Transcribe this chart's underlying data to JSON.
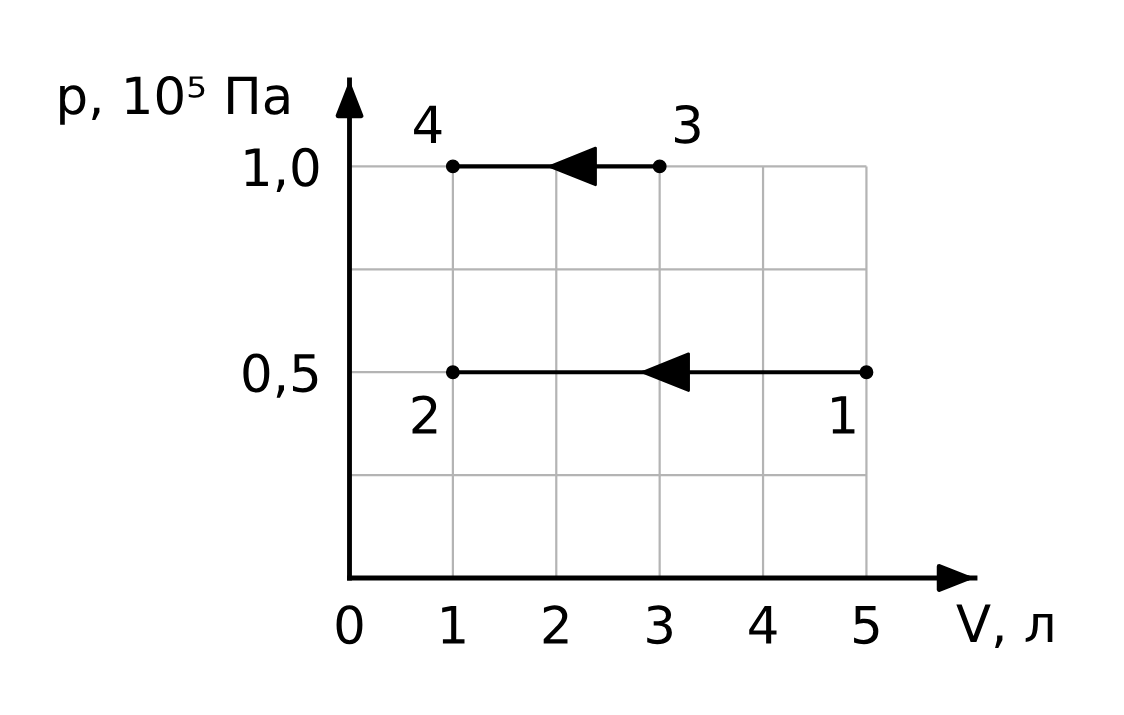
{
  "chart_data": {
    "type": "line",
    "xlabel": "V, л",
    "ylabel": "р, 10⁵ Па",
    "xlim": [
      0,
      6.05
    ],
    "ylim": [
      0,
      1.21
    ],
    "xticks": [
      0,
      1,
      2,
      3,
      4,
      5
    ],
    "yticks": [
      {
        "value": 0.25,
        "label": null
      },
      {
        "value": 0.5,
        "label": "0,5"
      },
      {
        "value": 0.75,
        "label": null
      },
      {
        "value": 1.0,
        "label": "1,0"
      }
    ],
    "grid": true,
    "marker": "circle",
    "line_style": "solid",
    "series": [
      {
        "color": "#000000",
        "x": [
          5,
          1
        ],
        "values": [
          0.5,
          0.5
        ]
      },
      {
        "color": "#000000",
        "x": [
          3,
          1
        ],
        "values": [
          1.0,
          1.0
        ]
      }
    ],
    "annotations": [
      {
        "text": "1",
        "x": 5,
        "y": 0.5
      },
      {
        "text": "2",
        "x": 1,
        "y": 0.5
      },
      {
        "text": "3",
        "x": 3,
        "y": 1.0
      },
      {
        "text": "4",
        "x": 1,
        "y": 1.0
      }
    ]
  }
}
